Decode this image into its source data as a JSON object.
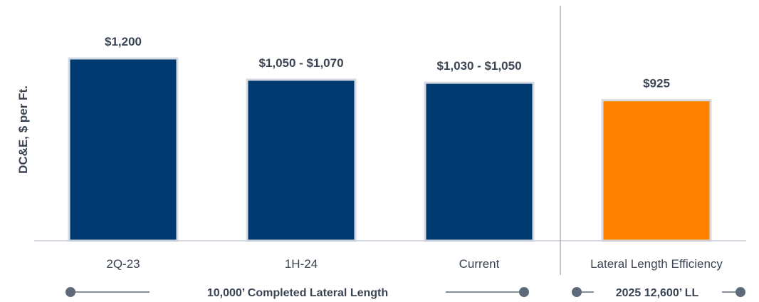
{
  "chart_data": {
    "type": "bar",
    "ylabel": "DC&E, $ per Ft.",
    "ylim": [
      0,
      1350
    ],
    "grid": false,
    "categories": [
      "2Q-23",
      "1H-24",
      "Current",
      "Lateral Length Efficiency"
    ],
    "values": [
      1200,
      1060,
      1040,
      925
    ],
    "value_labels": [
      "$1,200",
      "$1,050 - $1,070",
      "$1,030 - $1,050",
      "$925"
    ],
    "colors": [
      "#003a70",
      "#003a70",
      "#003a70",
      "#ff8300"
    ],
    "bar_border_color": "#d5dbe3",
    "baseline_color": "#c9ced6",
    "divider_color": "#a9b0ba",
    "legend": [
      {
        "label": "10,000’ Completed Lateral Length",
        "covers": [
          "2Q-23",
          "1H-24",
          "Current"
        ],
        "color": "#5f6b7a"
      },
      {
        "label": "2025 12,600’ LL",
        "covers": [
          "Lateral Length Efficiency"
        ],
        "color": "#5f6b7a"
      }
    ]
  }
}
